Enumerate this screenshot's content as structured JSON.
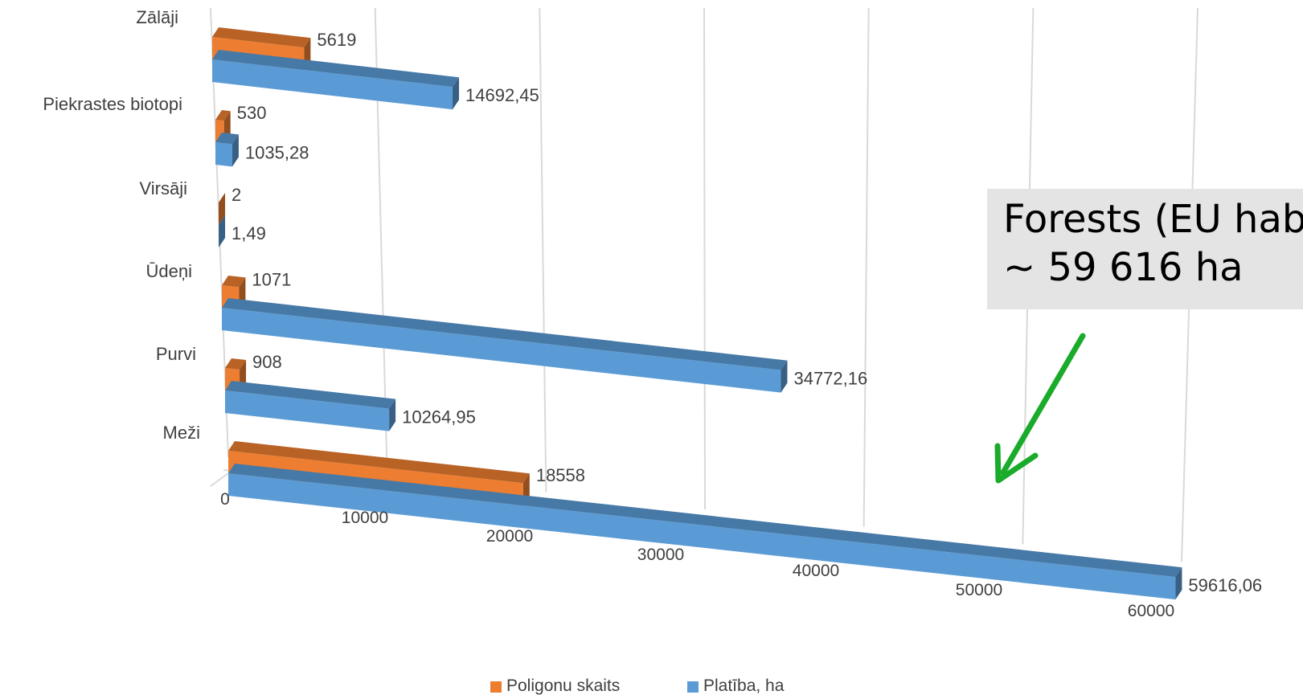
{
  "chart_data": {
    "type": "bar",
    "orientation": "horizontal",
    "style": "3d-perspective",
    "title": "",
    "xlabel": "",
    "ylabel": "",
    "xlim": [
      0,
      60000
    ],
    "x_ticks": [
      "0",
      "10000",
      "20000",
      "30000",
      "40000",
      "50000",
      "60000"
    ],
    "categories": [
      "Zālāji",
      "Piekrastes biotopi",
      "Virsāji",
      "Ūdeņi",
      "Purvi",
      "Meži"
    ],
    "series": [
      {
        "name": "Poligonu skaits",
        "color": "#ed7d31",
        "values": [
          5619,
          530,
          2,
          1071,
          908,
          18558
        ],
        "labels": [
          "5619",
          "530",
          "2",
          "1071",
          "908",
          "18558"
        ]
      },
      {
        "name": "Platība, ha",
        "color": "#5b9bd5",
        "values": [
          14692.45,
          1035.28,
          1.49,
          34772.16,
          10264.95,
          59616.06
        ],
        "labels": [
          "14692,45",
          "1035,28",
          "1,49",
          "34772,16",
          "10264,95",
          "59616,06"
        ]
      }
    ],
    "legend": "bottom",
    "grid": true
  },
  "callout": {
    "line1": "Forests (EU hab",
    "line2": "~ 59 616 ha",
    "arrow_color": "#1aab2a",
    "box_color": "#e4e4e4"
  }
}
